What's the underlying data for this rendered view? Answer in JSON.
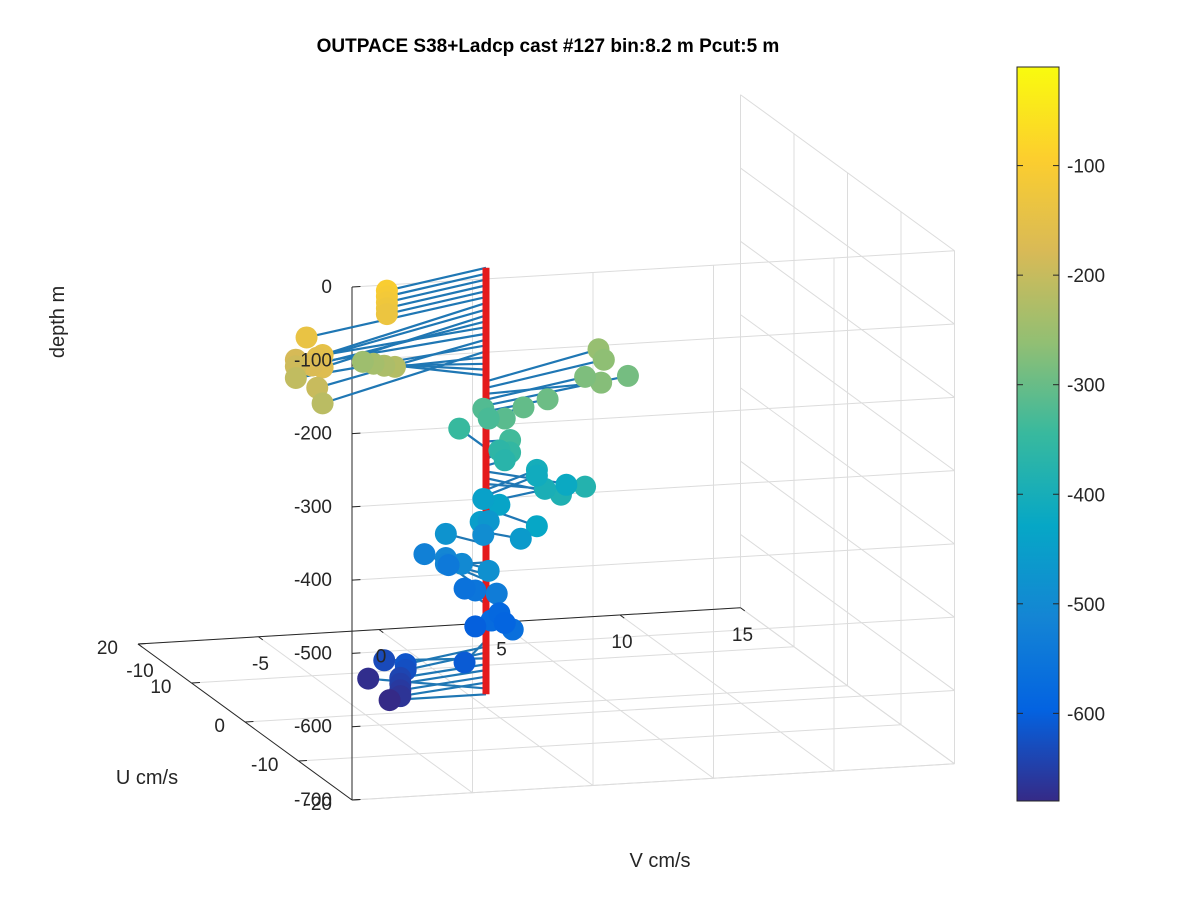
{
  "chart_data": {
    "type": "scatter",
    "title": "OUTPACE S38+Ladcp cast #127 bin:8.2 m  Pcut:5 m",
    "xlabel": "U cm/s",
    "ylabel": "V cm/s",
    "zlabel": "depth m",
    "view": "3d",
    "grid": true,
    "xlim": [
      -20,
      20
    ],
    "ylim": [
      -10,
      15
    ],
    "zlim": [
      -700,
      0
    ],
    "x_ticks": [
      "-20",
      "-10",
      "0",
      "10",
      "20"
    ],
    "y_ticks": [
      "-10",
      "-5",
      "0",
      "5",
      "10",
      "15"
    ],
    "z_ticks": [
      "0",
      "-100",
      "-200",
      "-300",
      "-400",
      "-500",
      "-600",
      "-700"
    ],
    "colorbar": {
      "limits": [
        -680,
        -10
      ],
      "ticks": [
        "-100",
        "-200",
        "-300",
        "-400",
        "-500",
        "-600"
      ],
      "colormap": "parula"
    },
    "mast_color": "#e41a1c",
    "stick_color": "#1f77b4",
    "depths": [
      -100,
      -108,
      -116,
      -124,
      -132,
      -140,
      -148,
      -157,
      -165,
      -173,
      -181,
      -190,
      -198,
      -206,
      -214,
      -222,
      -231,
      -239,
      -247,
      -255,
      -264,
      -272,
      -280,
      -288,
      -296,
      -305,
      -313,
      -321,
      -329,
      -337,
      -346,
      -354,
      -362,
      -370,
      -378,
      -387,
      -395,
      -403,
      -411,
      -420,
      -428,
      -436,
      -444,
      -452,
      -461,
      -469,
      -477,
      -485,
      -493,
      -502,
      -510,
      -518,
      -526,
      -534,
      -543,
      -551,
      -559,
      -567,
      -576,
      -584,
      -592,
      -600,
      -608,
      -617,
      -625,
      -633,
      -641,
      -649,
      -658,
      -666,
      -674,
      -682
    ],
    "u_values": [
      -4,
      -4,
      -4,
      -4,
      -4,
      -7,
      -10,
      -9,
      -10,
      -8,
      -5,
      -5,
      -9,
      -5,
      -10,
      -1,
      1,
      3,
      5,
      6,
      5,
      1,
      4,
      5,
      2,
      2,
      1,
      5,
      4,
      0,
      5,
      0,
      2,
      1,
      -5,
      -5,
      -2,
      4,
      4,
      3,
      -5,
      2,
      5,
      1,
      -2,
      4,
      3,
      -5,
      5,
      0,
      3,
      3,
      7,
      -2,
      7,
      2,
      4,
      -5,
      -1,
      2,
      1,
      2,
      -5,
      -3,
      -3,
      1,
      -2,
      -2,
      -2,
      -2,
      4,
      0
    ],
    "v_values": [
      -5,
      -5,
      -5,
      -5,
      -5,
      -9,
      -9,
      -9,
      -9,
      -9,
      -9,
      -9,
      -9,
      -9,
      -9,
      -4,
      -4,
      -4,
      -4,
      6,
      6,
      5,
      5,
      7,
      3,
      2,
      1,
      1,
      1,
      1,
      0,
      1,
      1,
      1,
      3,
      2,
      2,
      3,
      3,
      4,
      1,
      1,
      1,
      0,
      1,
      1,
      -1,
      -1,
      1,
      -1,
      -1,
      -1,
      -1,
      0,
      0,
      0,
      0,
      0,
      0,
      1,
      1,
      0,
      -2,
      -4,
      -4,
      -4,
      -4,
      -4,
      -4,
      -4,
      -4,
      -4
    ]
  }
}
